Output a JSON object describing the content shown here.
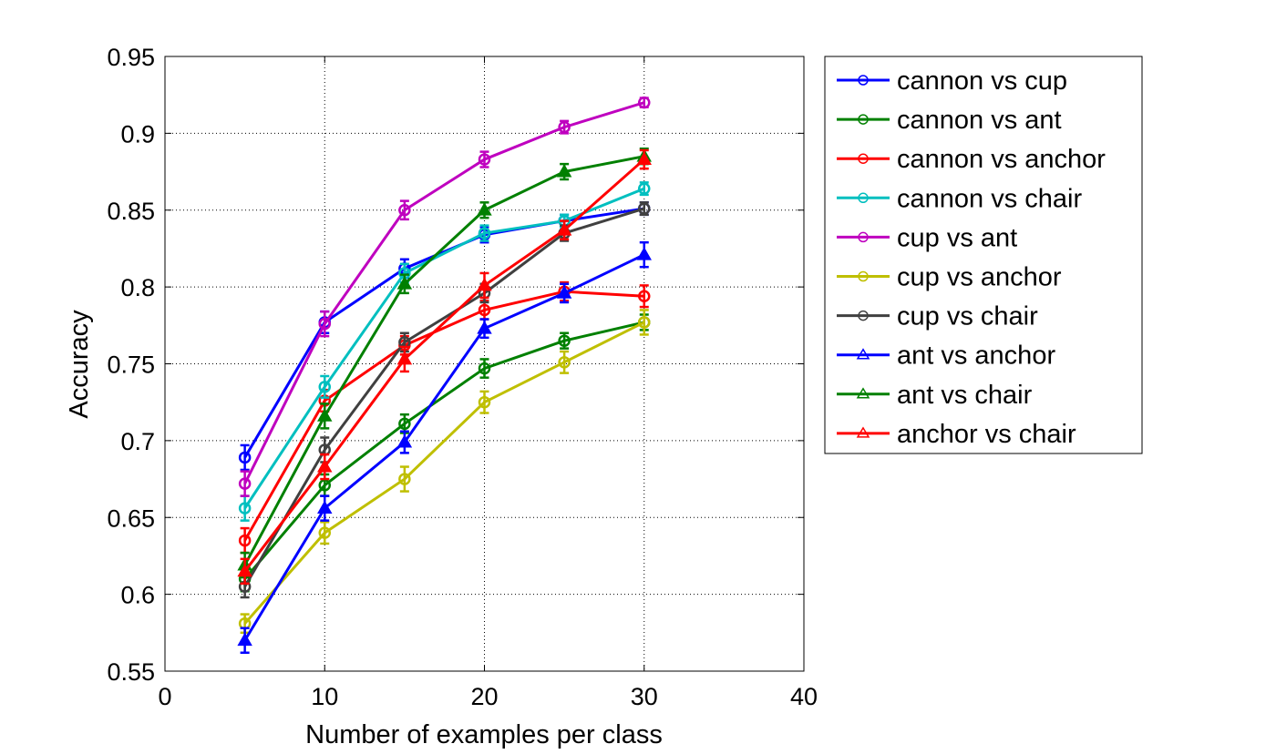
{
  "chart_data": {
    "type": "line",
    "title": "",
    "xlabel": "Number of examples per class",
    "ylabel": "Accuracy",
    "xlim": [
      0,
      40
    ],
    "ylim": [
      0.55,
      0.95
    ],
    "xticks": [
      0,
      10,
      20,
      30,
      40
    ],
    "yticks": [
      0.55,
      0.6,
      0.65,
      0.7,
      0.75,
      0.8,
      0.85,
      0.9,
      0.95
    ],
    "xtick_labels": [
      "0",
      "10",
      "20",
      "30",
      "40"
    ],
    "ytick_labels": [
      "0.55",
      "0.6",
      "0.65",
      "0.7",
      "0.75",
      "0.8",
      "0.85",
      "0.9",
      "0.95"
    ],
    "grid": true,
    "legend_position": "outside-right",
    "error_bars": true,
    "x": [
      5,
      10,
      15,
      20,
      25,
      30
    ],
    "series": [
      {
        "name": "cannon vs cup",
        "color": "#0000ff",
        "marker": "circle",
        "values": [
          0.689,
          0.777,
          0.812,
          0.834,
          0.843,
          0.851
        ],
        "errors": [
          0.008,
          0.007,
          0.006,
          0.005,
          0.004,
          0.004
        ]
      },
      {
        "name": "cannon vs ant",
        "color": "#008000",
        "marker": "circle",
        "values": [
          0.61,
          0.671,
          0.711,
          0.747,
          0.765,
          0.777
        ],
        "errors": [
          0.008,
          0.007,
          0.006,
          0.006,
          0.005,
          0.005
        ]
      },
      {
        "name": "cannon vs anchor",
        "color": "#ff0000",
        "marker": "circle",
        "values": [
          0.635,
          0.726,
          0.762,
          0.785,
          0.797,
          0.794
        ],
        "errors": [
          0.008,
          0.007,
          0.006,
          0.006,
          0.006,
          0.007
        ]
      },
      {
        "name": "cannon vs chair",
        "color": "#00bfbf",
        "marker": "circle",
        "values": [
          0.656,
          0.735,
          0.809,
          0.835,
          0.843,
          0.864
        ],
        "errors": [
          0.008,
          0.007,
          0.006,
          0.005,
          0.004,
          0.004
        ]
      },
      {
        "name": "cup vs ant",
        "color": "#bf00bf",
        "marker": "circle",
        "values": [
          0.672,
          0.776,
          0.85,
          0.883,
          0.904,
          0.92
        ],
        "errors": [
          0.008,
          0.008,
          0.006,
          0.005,
          0.004,
          0.003
        ]
      },
      {
        "name": "cup vs anchor",
        "color": "#bfbf00",
        "marker": "circle",
        "values": [
          0.581,
          0.64,
          0.675,
          0.725,
          0.751,
          0.777
        ],
        "errors": [
          0.006,
          0.007,
          0.008,
          0.007,
          0.007,
          0.008
        ]
      },
      {
        "name": "cup vs chair",
        "color": "#404040",
        "marker": "circle",
        "values": [
          0.605,
          0.694,
          0.764,
          0.796,
          0.835,
          0.851
        ],
        "errors": [
          0.007,
          0.008,
          0.006,
          0.006,
          0.005,
          0.004
        ]
      },
      {
        "name": "ant vs anchor",
        "color": "#0000ff",
        "marker": "triangle",
        "values": [
          0.57,
          0.656,
          0.699,
          0.773,
          0.796,
          0.821
        ],
        "errors": [
          0.008,
          0.008,
          0.007,
          0.006,
          0.006,
          0.008
        ]
      },
      {
        "name": "ant vs chair",
        "color": "#008000",
        "marker": "triangle",
        "values": [
          0.619,
          0.716,
          0.802,
          0.85,
          0.875,
          0.885
        ],
        "errors": [
          0.008,
          0.008,
          0.006,
          0.005,
          0.005,
          0.005
        ]
      },
      {
        "name": "anchor vs chair",
        "color": "#ff0000",
        "marker": "triangle",
        "values": [
          0.615,
          0.683,
          0.753,
          0.801,
          0.837,
          0.883
        ],
        "errors": [
          0.008,
          0.008,
          0.008,
          0.008,
          0.006,
          0.006
        ]
      }
    ]
  }
}
